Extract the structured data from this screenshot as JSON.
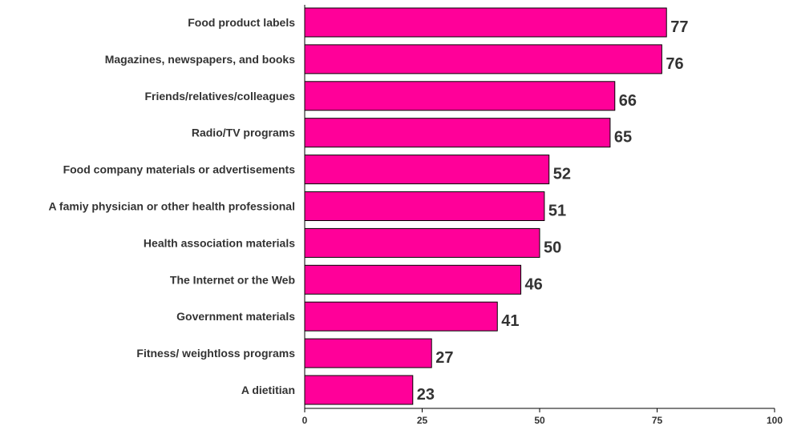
{
  "chart_data": {
    "type": "bar",
    "orientation": "horizontal",
    "title": "",
    "xlabel": "",
    "ylabel": "",
    "xlim": [
      0,
      100
    ],
    "ticks": [
      "0",
      "25",
      "50",
      "75",
      "100"
    ],
    "tick_values": [
      0,
      25,
      50,
      75,
      100
    ],
    "categories": [
      "Food product labels",
      "Magazines, newspapers, and books",
      "Friends/relatives/colleagues",
      "Radio/TV programs",
      "Food company materials or advertisements",
      "A famiy physician or other health professional",
      "Health association materials",
      "The Internet or the Web",
      "Government materials",
      "Fitness/ weightloss programs",
      "A dietitian"
    ],
    "values": [
      77,
      76,
      66,
      65,
      52,
      51,
      50,
      46,
      41,
      27,
      23
    ],
    "value_labels": [
      "77",
      "76",
      "66",
      "65",
      "52",
      "51",
      "50",
      "46",
      "41",
      "27",
      "23"
    ],
    "bar_color": "#FF0099",
    "bar_stroke": "#000000",
    "grid": false,
    "legend": "none"
  }
}
